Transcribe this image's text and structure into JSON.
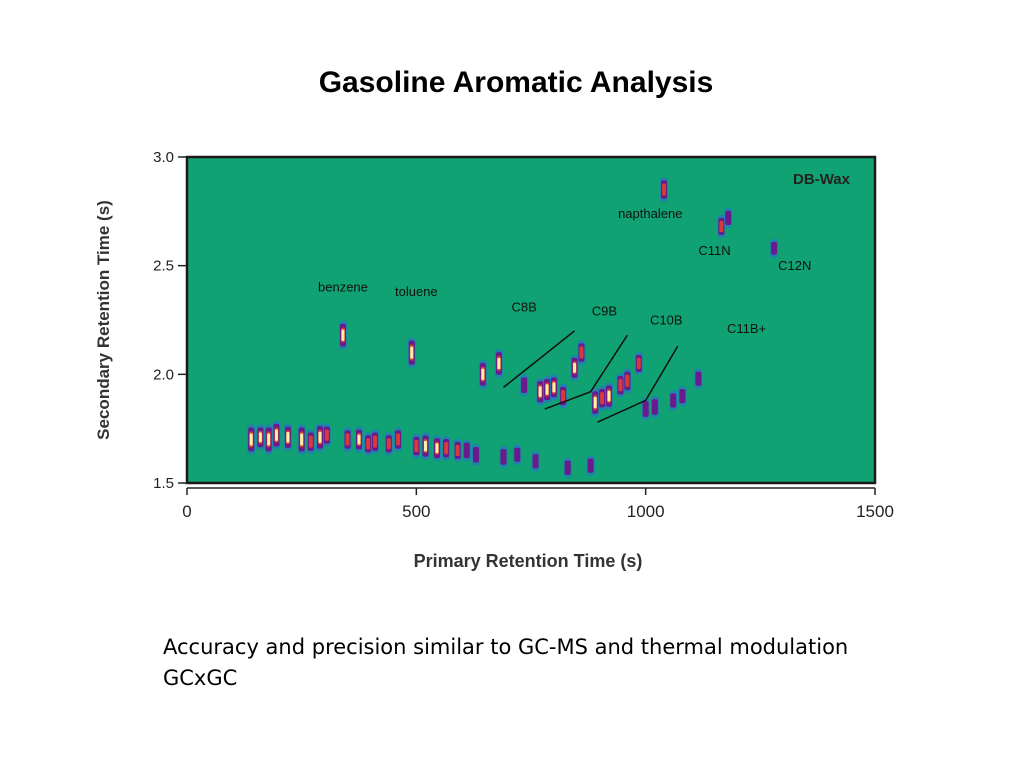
{
  "slide": {
    "title": "Gasoline Aromatic Analysis",
    "caption": "Accuracy and precision similar to GC-MS and thermal modulation GCxGC"
  },
  "colors": {
    "background": "#11a274",
    "frame": "#1a1a1a",
    "peak_low": "#2a6bd9",
    "peak_mid": "#6a1a8c",
    "peak_high": "#d63a3a",
    "peak_top": "#fff2a0"
  },
  "chart_data": {
    "type": "heatmap",
    "column_label": "DB-Wax",
    "xlabel": "Primary Retention Time (s)",
    "ylabel": "Secondary Retention Time (s)",
    "xlim": [
      0,
      1500
    ],
    "ylim": [
      1.5,
      3.0
    ],
    "x_ticks": [
      "0",
      "500",
      "1000",
      "1500"
    ],
    "y_ticks": [
      "1.5",
      "2.0",
      "2.5",
      "3.0"
    ],
    "annotations": [
      {
        "text": "benzene",
        "x": 340,
        "y": 2.38
      },
      {
        "text": "toluene",
        "x": 500,
        "y": 2.36
      },
      {
        "text": "C8B",
        "x": 735,
        "y": 2.29
      },
      {
        "text": "C9B",
        "x": 910,
        "y": 2.27
      },
      {
        "text": "C10B",
        "x": 1045,
        "y": 2.23
      },
      {
        "text": "C11B+",
        "x": 1220,
        "y": 2.19
      },
      {
        "text": "napthalene",
        "x": 1010,
        "y": 2.72
      },
      {
        "text": "C11N",
        "x": 1150,
        "y": 2.55
      },
      {
        "text": "C12N",
        "x": 1325,
        "y": 2.48
      }
    ],
    "group_lines": [
      {
        "x1": 690,
        "y1": 1.94,
        "x2": 845,
        "y2": 2.2
      },
      {
        "x1": 780,
        "y1": 1.84,
        "x2": 880,
        "y2": 1.92,
        "x3": 960,
        "y3": 2.18
      },
      {
        "x1": 895,
        "y1": 1.78,
        "x2": 1000,
        "y2": 1.88,
        "x3": 1070,
        "y3": 2.13
      }
    ],
    "peaks": [
      {
        "x": 140,
        "y": 1.7,
        "i": 1.0
      },
      {
        "x": 160,
        "y": 1.71,
        "i": 0.7
      },
      {
        "x": 178,
        "y": 1.7,
        "i": 1.0
      },
      {
        "x": 195,
        "y": 1.72,
        "i": 0.9
      },
      {
        "x": 220,
        "y": 1.71,
        "i": 0.8
      },
      {
        "x": 250,
        "y": 1.7,
        "i": 1.0
      },
      {
        "x": 270,
        "y": 1.69,
        "i": 0.6
      },
      {
        "x": 290,
        "y": 1.71,
        "i": 0.9
      },
      {
        "x": 305,
        "y": 1.72,
        "i": 0.5
      },
      {
        "x": 340,
        "y": 2.18,
        "i": 0.9
      },
      {
        "x": 350,
        "y": 1.7,
        "i": 0.6
      },
      {
        "x": 375,
        "y": 1.7,
        "i": 0.7
      },
      {
        "x": 395,
        "y": 1.68,
        "i": 0.5
      },
      {
        "x": 410,
        "y": 1.69,
        "i": 0.6
      },
      {
        "x": 440,
        "y": 1.68,
        "i": 0.5
      },
      {
        "x": 460,
        "y": 1.7,
        "i": 0.6
      },
      {
        "x": 490,
        "y": 2.1,
        "i": 1.0
      },
      {
        "x": 500,
        "y": 1.67,
        "i": 0.6
      },
      {
        "x": 520,
        "y": 1.67,
        "i": 0.8
      },
      {
        "x": 545,
        "y": 1.66,
        "i": 0.7
      },
      {
        "x": 565,
        "y": 1.66,
        "i": 0.6
      },
      {
        "x": 590,
        "y": 1.65,
        "i": 0.5
      },
      {
        "x": 610,
        "y": 1.65,
        "i": 0.4
      },
      {
        "x": 630,
        "y": 1.63,
        "i": 0.4
      },
      {
        "x": 645,
        "y": 2.0,
        "i": 0.9
      },
      {
        "x": 680,
        "y": 2.05,
        "i": 0.9
      },
      {
        "x": 690,
        "y": 1.62,
        "i": 0.4
      },
      {
        "x": 720,
        "y": 1.63,
        "i": 0.3
      },
      {
        "x": 735,
        "y": 1.95,
        "i": 0.4
      },
      {
        "x": 760,
        "y": 1.6,
        "i": 0.3
      },
      {
        "x": 770,
        "y": 1.92,
        "i": 0.8
      },
      {
        "x": 785,
        "y": 1.93,
        "i": 0.8
      },
      {
        "x": 800,
        "y": 1.94,
        "i": 0.7
      },
      {
        "x": 820,
        "y": 1.9,
        "i": 0.6
      },
      {
        "x": 830,
        "y": 1.57,
        "i": 0.3
      },
      {
        "x": 845,
        "y": 2.03,
        "i": 0.7
      },
      {
        "x": 860,
        "y": 2.1,
        "i": 0.6
      },
      {
        "x": 880,
        "y": 1.58,
        "i": 0.3
      },
      {
        "x": 890,
        "y": 1.87,
        "i": 0.9
      },
      {
        "x": 905,
        "y": 1.89,
        "i": 0.6
      },
      {
        "x": 920,
        "y": 1.9,
        "i": 0.8
      },
      {
        "x": 945,
        "y": 1.95,
        "i": 0.6
      },
      {
        "x": 960,
        "y": 1.97,
        "i": 0.6
      },
      {
        "x": 985,
        "y": 2.05,
        "i": 0.5
      },
      {
        "x": 1000,
        "y": 1.84,
        "i": 0.4
      },
      {
        "x": 1020,
        "y": 1.85,
        "i": 0.4
      },
      {
        "x": 1040,
        "y": 2.85,
        "i": 0.6
      },
      {
        "x": 1060,
        "y": 1.88,
        "i": 0.3
      },
      {
        "x": 1080,
        "y": 1.9,
        "i": 0.3
      },
      {
        "x": 1115,
        "y": 1.98,
        "i": 0.3
      },
      {
        "x": 1165,
        "y": 2.68,
        "i": 0.5
      },
      {
        "x": 1180,
        "y": 2.72,
        "i": 0.3
      },
      {
        "x": 1280,
        "y": 2.58,
        "i": 0.2
      }
    ]
  }
}
